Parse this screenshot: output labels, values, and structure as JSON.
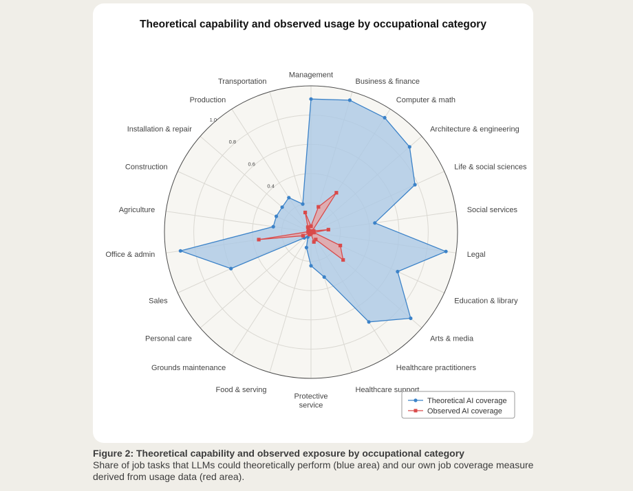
{
  "chart_data": {
    "type": "radar",
    "title": "Theoretical capability and observed usage by occupational category",
    "categories": [
      "Management",
      "Business & finance",
      "Computer & math",
      "Architecture & engineering",
      "Life & social sciences",
      "Social services",
      "Legal",
      "Education & library",
      "Arts & media",
      "Healthcare practitioners",
      "Healthcare support",
      "Protective service",
      "Food & serving",
      "Grounds maintenance",
      "Personal care",
      "Sales",
      "Office & admin",
      "Agriculture",
      "Construction",
      "Installation & repair",
      "Production",
      "Transportation"
    ],
    "category_display": [
      "Management",
      "Business & finance",
      "Computer & math",
      "Architecture & engineering",
      "Life & social sciences",
      "Social services",
      "Legal",
      "Education & library",
      "Arts & media",
      "Healthcare practitioners",
      "Healthcare support",
      "Protective|service",
      "Food & serving",
      "Grounds maintenance",
      "Personal care",
      "Sales",
      "Office & admin",
      "Agriculture",
      "Construction",
      "Installation & repair",
      "Production",
      "Transportation"
    ],
    "rlim": [
      0,
      1.0
    ],
    "ticks": [
      "0.4",
      "0.6",
      "0.8",
      "1.0"
    ],
    "tick_values": [
      0.4,
      0.6,
      0.8,
      1.0
    ],
    "series": [
      {
        "name": "Theoretical AI coverage",
        "color": "#3b82c8",
        "fill": "#aac8e6",
        "marker": "circle",
        "values": [
          0.91,
          0.94,
          0.93,
          0.89,
          0.78,
          0.44,
          0.93,
          0.65,
          0.9,
          0.73,
          0.32,
          0.23,
          0.11,
          0.04,
          0.06,
          0.6,
          0.9,
          0.26,
          0.26,
          0.26,
          0.28,
          0.2
        ]
      },
      {
        "name": "Observed AI coverage",
        "color": "#d94a4a",
        "fill": "#e8a3a3",
        "marker": "square",
        "values": [
          0.04,
          0.18,
          0.32,
          0.01,
          0.02,
          0.12,
          0.02,
          0.22,
          0.29,
          0.06,
          0.07,
          0.01,
          0.01,
          0.02,
          0.01,
          0.06,
          0.36,
          0.02,
          0.02,
          0.02,
          0.04,
          0.14
        ]
      }
    ],
    "legend_position": "bottom-right",
    "grid": true
  },
  "caption": {
    "title": "Figure 2: Theoretical capability and observed exposure by occupational category",
    "body": "Share of job tasks that LLMs could theoretically perform (blue area) and our own job coverage measure derived from usage data (red area)."
  }
}
